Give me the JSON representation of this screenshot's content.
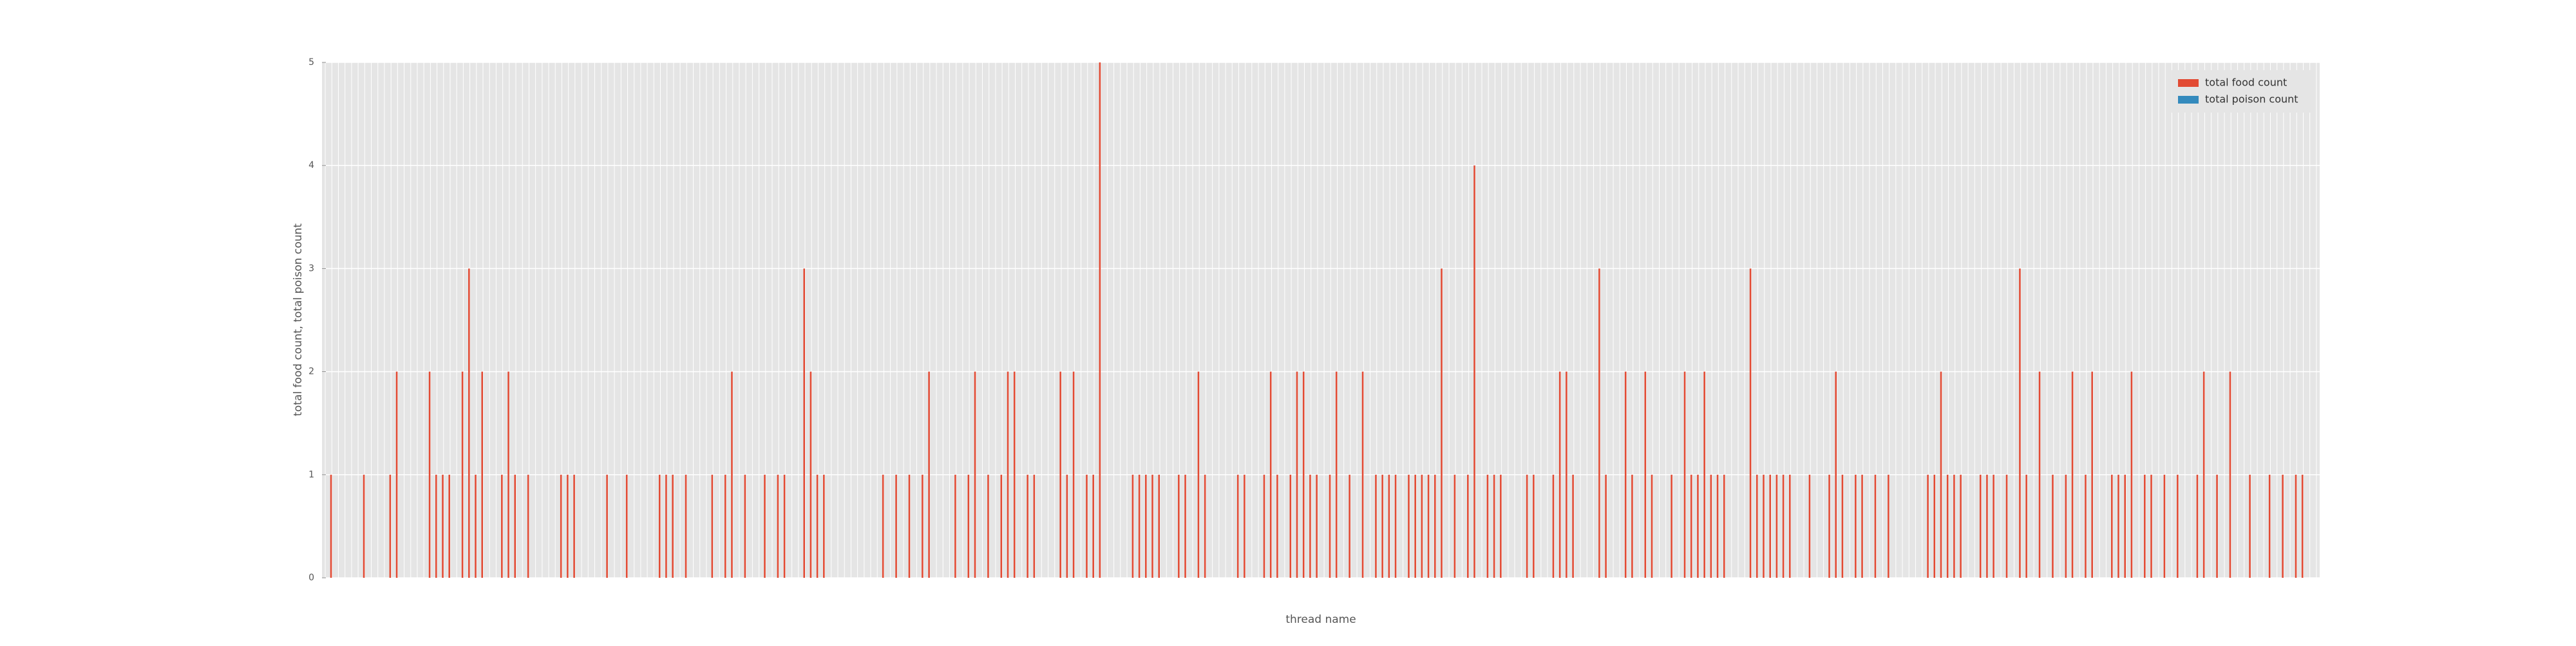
{
  "chart_data": {
    "type": "bar",
    "xlabel": "thread name",
    "ylabel": "total food count, total poison count",
    "categories": [
      null,
      null,
      null,
      null,
      null,
      null,
      null,
      null,
      null,
      null,
      null,
      null,
      null,
      null,
      null,
      null,
      null,
      null,
      null,
      null,
      null,
      null,
      null,
      null,
      null,
      null,
      null,
      null,
      null,
      null,
      null,
      null,
      null,
      null,
      null,
      null,
      null,
      null,
      null,
      null,
      null,
      null,
      null,
      null,
      null,
      null,
      null,
      null,
      null,
      null,
      null,
      null,
      null,
      null,
      null,
      null,
      null,
      null,
      null,
      null,
      null,
      null,
      null,
      null,
      null,
      null,
      null,
      null,
      null,
      null,
      null,
      null,
      null,
      null,
      null,
      null,
      null,
      null,
      null,
      null,
      null,
      null,
      null,
      null,
      null,
      null,
      null,
      null,
      null,
      null,
      null,
      null,
      null,
      null,
      null,
      null,
      null,
      null,
      null,
      null,
      null,
      null,
      null,
      null,
      null,
      null,
      null,
      null,
      null,
      null,
      null,
      null,
      null,
      null,
      null,
      null,
      null,
      null,
      null,
      null,
      null,
      null,
      null,
      null,
      null,
      null,
      null,
      null,
      null,
      null,
      null,
      null,
      null,
      null,
      null,
      null,
      null,
      null,
      null,
      null,
      null,
      null,
      null,
      null,
      null,
      null,
      null,
      null,
      null,
      null,
      null,
      null,
      null,
      null,
      null,
      null,
      null,
      null,
      null,
      null,
      null,
      null,
      null,
      null,
      null,
      null,
      null,
      null,
      null,
      null,
      null,
      null,
      null,
      null,
      null,
      null,
      null,
      null,
      null,
      null,
      null,
      null,
      null,
      null,
      null,
      null,
      null,
      null,
      null,
      null,
      null,
      null,
      null,
      null,
      null,
      null,
      null,
      null,
      null,
      null,
      null,
      null,
      null,
      null,
      null,
      null,
      null,
      null,
      null,
      null,
      null,
      null,
      null,
      null,
      null,
      null,
      null,
      null,
      null,
      null,
      null,
      null,
      null,
      null,
      null,
      null,
      null,
      null,
      null,
      null,
      null,
      null,
      null,
      null,
      null,
      null,
      null,
      null,
      null,
      null,
      null,
      null,
      null,
      null,
      null,
      null,
      null,
      null,
      null,
      null,
      null,
      null,
      null,
      null,
      null,
      null,
      null,
      null,
      null,
      null,
      null,
      null,
      null,
      null,
      null,
      null,
      null,
      null,
      null,
      null,
      null,
      null,
      null,
      null,
      null,
      null,
      null,
      null,
      null,
      null,
      null,
      null,
      null,
      null,
      null,
      null,
      null,
      null,
      null,
      null,
      null,
      null,
      null,
      null,
      null,
      null,
      null,
      null,
      null,
      null,
      null,
      null,
      null,
      null
    ],
    "series": [
      {
        "name": "total food count",
        "color": "#e24a33",
        "values": [
          0,
          1,
          0,
          0,
          0,
          0,
          1,
          0,
          0,
          0,
          1,
          2,
          0,
          0,
          0,
          0,
          2,
          1,
          1,
          1,
          0,
          2,
          3,
          1,
          2,
          0,
          0,
          1,
          2,
          1,
          0,
          1,
          0,
          0,
          0,
          0,
          1,
          1,
          1,
          0,
          0,
          0,
          0,
          1,
          0,
          0,
          1,
          0,
          0,
          0,
          0,
          1,
          1,
          1,
          0,
          1,
          0,
          0,
          0,
          1,
          0,
          1,
          2,
          0,
          1,
          0,
          0,
          1,
          0,
          1,
          1,
          0,
          0,
          3,
          2,
          1,
          1,
          0,
          0,
          0,
          0,
          0,
          0,
          0,
          0,
          1,
          0,
          1,
          0,
          1,
          0,
          1,
          2,
          0,
          0,
          0,
          1,
          0,
          1,
          2,
          0,
          1,
          0,
          1,
          2,
          2,
          0,
          1,
          1,
          0,
          0,
          0,
          2,
          1,
          2,
          0,
          1,
          1,
          5,
          0,
          0,
          0,
          0,
          1,
          1,
          1,
          1,
          1,
          0,
          0,
          1,
          1,
          0,
          2,
          1,
          0,
          0,
          0,
          0,
          1,
          1,
          0,
          0,
          1,
          2,
          1,
          0,
          1,
          2,
          2,
          1,
          1,
          0,
          1,
          2,
          0,
          1,
          0,
          2,
          0,
          1,
          1,
          1,
          1,
          0,
          1,
          1,
          1,
          1,
          1,
          3,
          0,
          1,
          0,
          1,
          4,
          0,
          1,
          1,
          1,
          0,
          0,
          0,
          1,
          1,
          0,
          0,
          1,
          2,
          2,
          1,
          0,
          0,
          0,
          3,
          1,
          0,
          0,
          2,
          1,
          0,
          2,
          1,
          0,
          0,
          1,
          0,
          2,
          1,
          1,
          2,
          1,
          1,
          1,
          0,
          0,
          0,
          3,
          1,
          1,
          1,
          1,
          1,
          1,
          0,
          0,
          1,
          0,
          0,
          1,
          2,
          1,
          0,
          1,
          1,
          0,
          1,
          0,
          1,
          0,
          0,
          0,
          0,
          0,
          1,
          1,
          2,
          1,
          1,
          1,
          0,
          0,
          1,
          1,
          1,
          0,
          1,
          0,
          3,
          1,
          0,
          2,
          0,
          1,
          0,
          1,
          2,
          0,
          1,
          2,
          0,
          0,
          1,
          1,
          1,
          2,
          0,
          1,
          1,
          0,
          1,
          0,
          1,
          0,
          0,
          1,
          2,
          0,
          1,
          0,
          2,
          0,
          0,
          1,
          0,
          0,
          1,
          0,
          1,
          0,
          1,
          1,
          0,
          0
        ]
      },
      {
        "name": "total poison count",
        "color": "#348abd",
        "values": [
          0,
          0,
          0,
          0,
          0,
          0,
          0,
          0,
          0,
          0,
          0,
          0,
          0,
          0,
          0,
          0,
          0,
          0,
          0,
          0,
          0,
          0,
          0,
          0,
          0,
          0,
          0,
          0,
          0,
          0,
          0,
          0,
          0,
          0,
          0,
          0,
          0,
          0,
          0,
          0,
          0,
          0,
          0,
          0,
          0,
          0,
          0,
          0,
          0,
          0,
          0,
          0,
          0,
          0,
          0,
          0,
          0,
          0,
          0,
          0,
          0,
          0,
          0,
          0,
          0,
          0,
          0,
          0,
          0,
          0,
          0,
          0,
          0,
          0,
          0,
          0,
          0,
          0,
          0,
          0,
          0,
          0,
          0,
          0,
          0,
          0,
          0,
          0,
          0,
          0,
          0,
          0,
          0,
          0,
          0,
          0,
          0,
          0,
          0,
          0,
          0,
          0,
          0,
          0,
          0,
          0,
          0,
          0,
          0,
          0,
          0,
          0,
          0,
          0,
          0,
          0,
          0,
          0,
          0,
          0,
          0,
          0,
          0,
          0,
          0,
          0,
          0,
          0,
          0,
          0,
          0,
          0,
          0,
          0,
          0,
          0,
          0,
          0,
          0,
          0,
          0,
          0,
          0,
          0,
          0,
          0,
          0,
          0,
          0,
          0,
          0,
          0,
          0,
          0,
          0,
          0,
          0,
          0,
          0,
          0,
          0,
          0,
          0,
          0,
          0,
          0,
          0,
          0,
          0,
          0,
          0,
          0,
          0,
          0,
          0,
          0,
          0,
          0,
          0,
          0,
          0,
          0,
          0,
          0,
          0,
          0,
          0,
          0,
          0,
          0,
          0,
          0,
          0,
          0,
          0,
          0,
          0,
          0,
          0,
          0,
          0,
          0,
          0,
          0,
          0,
          0,
          0,
          0,
          0,
          0,
          0,
          0,
          0,
          0,
          0,
          0,
          0,
          0,
          0,
          0,
          0,
          0,
          0,
          0,
          0,
          0,
          0,
          0,
          0,
          0,
          0,
          0,
          0,
          0,
          0,
          0,
          0,
          0,
          0,
          0,
          0,
          0,
          0,
          0,
          0,
          0,
          0,
          0,
          0,
          0,
          0,
          0,
          0,
          0,
          0,
          0,
          0,
          0,
          0,
          0,
          0,
          0,
          0,
          0,
          0,
          0,
          0,
          0,
          0,
          0,
          0,
          0,
          0,
          0,
          0,
          0,
          0,
          0,
          0,
          0,
          0,
          0,
          0,
          0,
          0,
          0,
          0,
          0,
          0,
          0,
          0,
          0,
          0,
          0,
          0,
          0,
          0,
          0,
          0,
          0,
          0,
          0,
          0,
          0
        ]
      }
    ],
    "ylim": [
      0,
      5
    ],
    "yticks": [
      0,
      1,
      2,
      3,
      4,
      5
    ],
    "grid": true,
    "legend": "upper right"
  }
}
